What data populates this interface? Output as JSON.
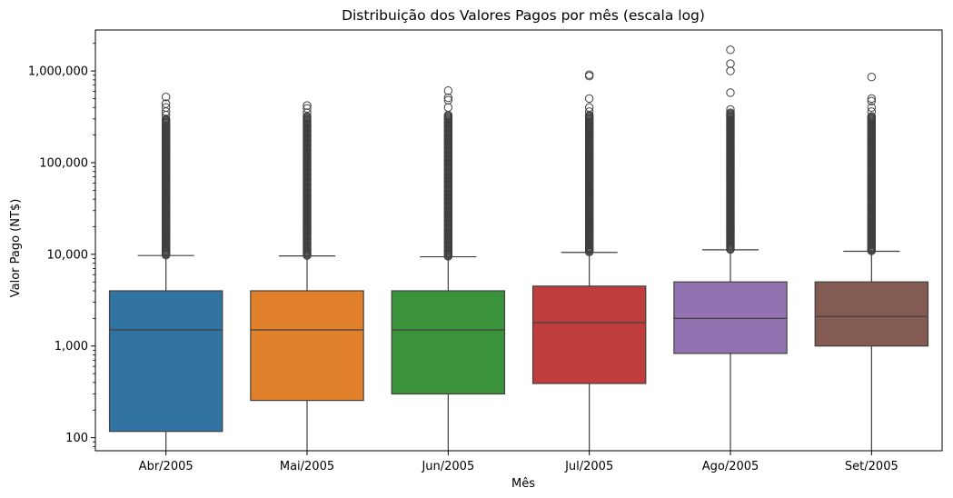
{
  "chart_data": {
    "type": "box",
    "title": "Distribuição dos Valores Pagos por mês (escala log)",
    "xlabel": "Mês",
    "ylabel": "Valor Pago (NT$)",
    "yscale": "log",
    "ylim": [
      72,
      2800000
    ],
    "yticks": [
      {
        "value": 100,
        "label": "100"
      },
      {
        "value": 1000,
        "label": "1,000"
      },
      {
        "value": 10000,
        "label": "10,000"
      },
      {
        "value": 100000,
        "label": "100,000"
      },
      {
        "value": 1000000,
        "label": "1,000,000"
      }
    ],
    "grid": false,
    "categories": [
      "Abr/2005",
      "Mai/2005",
      "Jun/2005",
      "Jul/2005",
      "Ago/2005",
      "Set/2005"
    ],
    "boxes": [
      {
        "category": "Abr/2005",
        "color": "#3274a1",
        "whisker_low": 0,
        "q1": 117,
        "median": 1500,
        "q3": 4000,
        "whisker_high": 9700,
        "outlier_range": [
          9800,
          300000
        ],
        "sparse_outliers": [
          330000,
          360000,
          400000,
          440000,
          520000
        ]
      },
      {
        "category": "Mai/2005",
        "color": "#e1812c",
        "whisker_low": 0,
        "q1": 255,
        "median": 1500,
        "q3": 4000,
        "whisker_high": 9600,
        "outlier_range": [
          9700,
          320000
        ],
        "sparse_outliers": [
          350000,
          390000,
          420000
        ]
      },
      {
        "category": "Jun/2005",
        "color": "#3a923a",
        "whisker_low": 0,
        "q1": 300,
        "median": 1500,
        "q3": 4000,
        "whisker_high": 9400,
        "outlier_range": [
          9500,
          330000
        ],
        "sparse_outliers": [
          400000,
          480000,
          510000,
          610000
        ]
      },
      {
        "category": "Jul/2005",
        "color": "#c03d3e",
        "whisker_low": 0,
        "q1": 390,
        "median": 1800,
        "q3": 4500,
        "whisker_high": 10500,
        "outlier_range": [
          10600,
          330000
        ],
        "sparse_outliers": [
          360000,
          400000,
          500000,
          880000,
          910000
        ]
      },
      {
        "category": "Ago/2005",
        "color": "#9372b2",
        "whisker_low": 0,
        "q1": 830,
        "median": 2000,
        "q3": 5000,
        "whisker_high": 11200,
        "outlier_range": [
          11300,
          350000
        ],
        "sparse_outliers": [
          380000,
          580000,
          1000000,
          1200000,
          1700000
        ]
      },
      {
        "category": "Set/2005",
        "color": "#845b53",
        "whisker_low": 0,
        "q1": 1000,
        "median": 2100,
        "q3": 5000,
        "whisker_high": 10800,
        "outlier_range": [
          10900,
          320000
        ],
        "sparse_outliers": [
          360000,
          400000,
          470000,
          500000,
          860000
        ]
      }
    ]
  }
}
